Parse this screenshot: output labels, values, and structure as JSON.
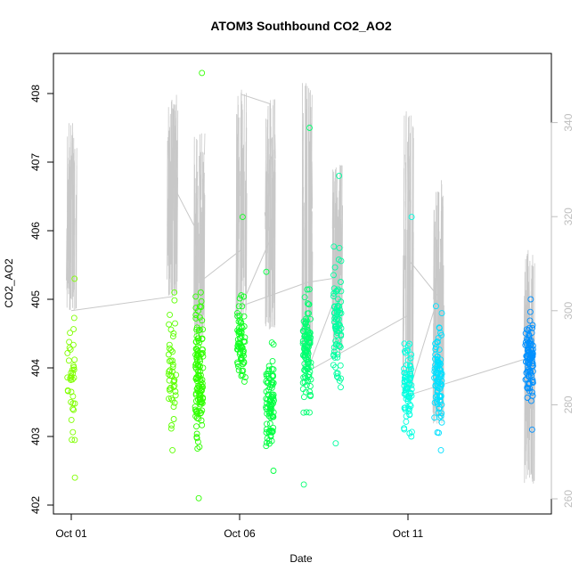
{
  "chart_data": {
    "type": "scatter",
    "title": "ATOM3 Southbound CO2_AO2",
    "xlabel": "Date",
    "ylabel": "CO2_AO2",
    "x_ticks": [
      {
        "label": "Oct 01",
        "day": 1.0
      },
      {
        "label": "Oct 06",
        "day": 6.0
      },
      {
        "label": "Oct 11",
        "day": 11.0
      }
    ],
    "xlim_days": [
      0.0,
      15.0
    ],
    "ylim": [
      402.0,
      408.6
    ],
    "y_ticks": [
      402,
      403,
      404,
      405,
      406,
      407,
      408
    ],
    "y2lim": [
      256.0,
      344.0
    ],
    "y2_ticks": [
      260,
      280,
      300,
      320,
      340
    ],
    "right_axis_color": "#bebebe",
    "line_color": "#c8c8c8",
    "grid": false,
    "legend": "none",
    "marker": "open-circle",
    "clusters": [
      {
        "day": 1.0,
        "color": "#80ff00",
        "n": 38,
        "ymin": 402.4,
        "ymax": 405.3,
        "ymean": 403.7,
        "spread": 0.6
      },
      {
        "day": 4.0,
        "color": "#5cff00",
        "n": 45,
        "ymin": 402.8,
        "ymax": 405.1,
        "ymean": 403.9,
        "spread": 0.6
      },
      {
        "day": 4.8,
        "color": "#30ff00",
        "n": 130,
        "ymin": 402.1,
        "ymax": 408.3,
        "ymean": 403.9,
        "spread": 0.7
      },
      {
        "day": 6.05,
        "color": "#10ff20",
        "n": 70,
        "ymin": 403.8,
        "ymax": 406.2,
        "ymean": 404.4,
        "spread": 0.35
      },
      {
        "day": 6.9,
        "color": "#00ff40",
        "n": 90,
        "ymin": 402.5,
        "ymax": 405.4,
        "ymean": 403.5,
        "spread": 0.55
      },
      {
        "day": 8.0,
        "color": "#00ff70",
        "n": 110,
        "ymin": 402.3,
        "ymax": 407.5,
        "ymean": 404.3,
        "spread": 0.6
      },
      {
        "day": 8.9,
        "color": "#00ffa0",
        "n": 80,
        "ymin": 402.9,
        "ymax": 406.8,
        "ymean": 404.6,
        "spread": 0.6
      },
      {
        "day": 11.0,
        "color": "#00ffe0",
        "n": 75,
        "ymin": 403.0,
        "ymax": 406.2,
        "ymean": 403.8,
        "spread": 0.4
      },
      {
        "day": 11.9,
        "color": "#00e0ff",
        "n": 90,
        "ymin": 402.8,
        "ymax": 404.9,
        "ymean": 403.9,
        "spread": 0.5
      },
      {
        "day": 14.6,
        "color": "#0090ff",
        "n": 100,
        "ymin": 403.1,
        "ymax": 405.0,
        "ymean": 404.1,
        "spread": 0.4
      }
    ],
    "line_series": [
      {
        "day": 1.0,
        "y2": 300.0
      },
      {
        "day": 4.0,
        "y2": 303.0
      },
      {
        "day": 4.0,
        "y2": 327.0
      },
      {
        "day": 4.8,
        "y2": 316.0
      },
      {
        "day": 4.8,
        "y2": 306.0
      },
      {
        "day": 6.05,
        "y2": 313.0
      },
      {
        "day": 6.05,
        "y2": 346.0
      },
      {
        "day": 6.9,
        "y2": 344.0
      },
      {
        "day": 6.9,
        "y2": 315.0
      },
      {
        "day": 6.05,
        "y2": 301.0
      },
      {
        "day": 8.0,
        "y2": 306.0
      },
      {
        "day": 8.9,
        "y2": 307.0
      },
      {
        "day": 8.9,
        "y2": 304.0
      },
      {
        "day": 8.0,
        "y2": 287.0
      },
      {
        "day": 11.0,
        "y2": 299.0
      },
      {
        "day": 11.0,
        "y2": 311.0
      },
      {
        "day": 11.9,
        "y2": 303.0
      },
      {
        "day": 11.0,
        "y2": 282.0
      },
      {
        "day": 14.6,
        "y2": 290.0
      }
    ],
    "spikes": [
      {
        "day": 1.0,
        "lo": 300,
        "hi": 340
      },
      {
        "day": 4.0,
        "lo": 303,
        "hi": 346
      },
      {
        "day": 4.8,
        "lo": 293,
        "hi": 338
      },
      {
        "day": 6.05,
        "lo": 298,
        "hi": 347
      },
      {
        "day": 6.9,
        "lo": 296,
        "hi": 345
      },
      {
        "day": 8.0,
        "lo": 288,
        "hi": 349
      },
      {
        "day": 8.9,
        "lo": 290,
        "hi": 331
      },
      {
        "day": 11.0,
        "lo": 282,
        "hi": 343
      },
      {
        "day": 11.9,
        "lo": 276,
        "hi": 328
      },
      {
        "day": 14.6,
        "lo": 263,
        "hi": 313
      }
    ]
  }
}
